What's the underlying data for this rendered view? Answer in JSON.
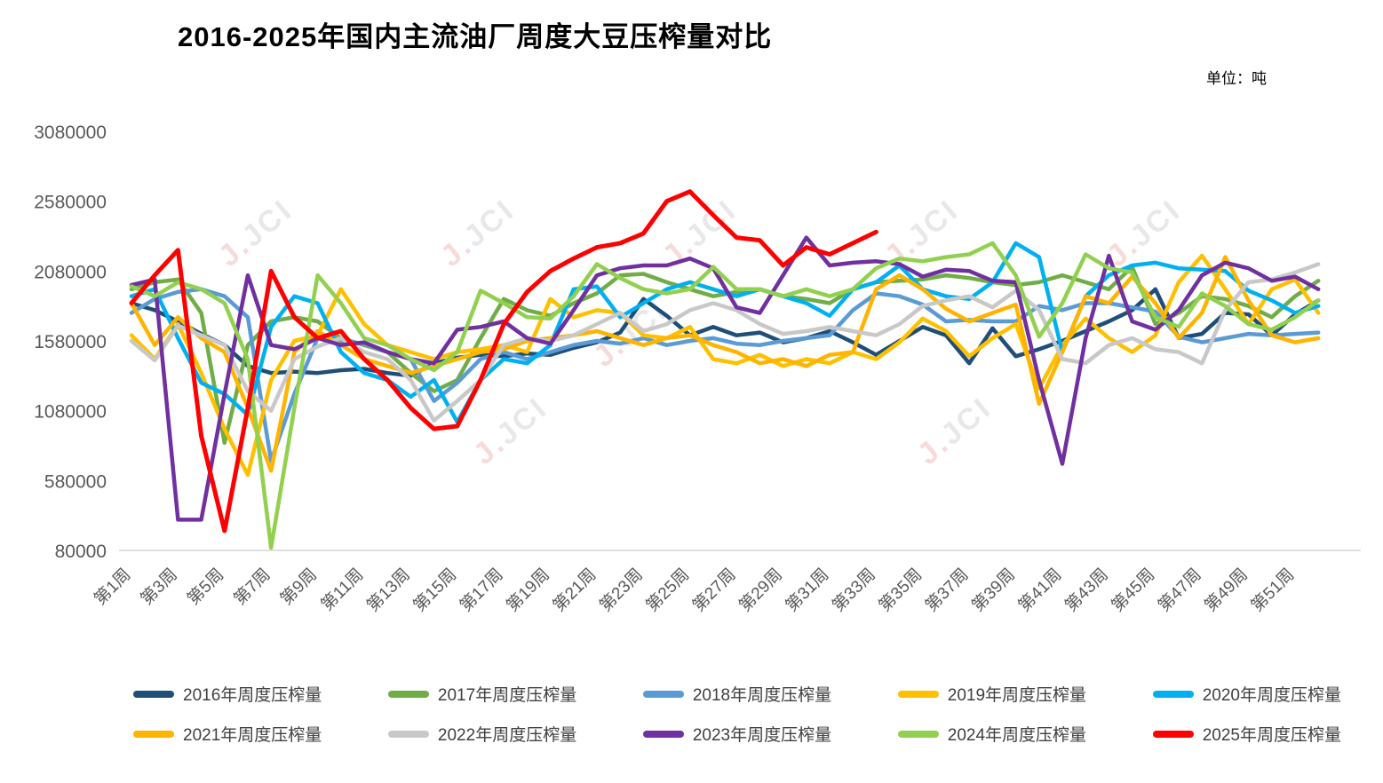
{
  "title": "2016-2025年国内主流油厂周度大豆压榨量对比",
  "unit_label": "单位：吨",
  "watermark": {
    "glyph": "J.",
    "text": "JCI"
  },
  "colors": {
    "axis_text": "#595959",
    "axis_line": "#d6d6d6",
    "watermark_red": "#f0b9b9",
    "watermark_gray": "#d2d2d2"
  },
  "chart_data": {
    "type": "line",
    "title": "2016-2025年国内主流油厂周度大豆压榨量对比",
    "unit": "吨",
    "grid": false,
    "legend_position": "bottom",
    "ylim": [
      80000,
      3080000
    ],
    "y_ticks": [
      3080000,
      2580000,
      2080000,
      1580000,
      1080000,
      580000,
      80000
    ],
    "weeks": 52,
    "x_tick_labels": [
      "第1周",
      "第3周",
      "第5周",
      "第7周",
      "第9周",
      "第11周",
      "第13周",
      "第15周",
      "第17周",
      "第19周",
      "第21周",
      "第23周",
      "第25周",
      "第27周",
      "第29周",
      "第31周",
      "第33周",
      "第35周",
      "第37周",
      "第39周",
      "第41周",
      "第43周",
      "第45周",
      "第47周",
      "第49周",
      "第51周"
    ],
    "series": [
      {
        "name": "2016年周度压榨量",
        "color": "#1F4E79",
        "values": [
          1850000,
          1800000,
          1720000,
          1630000,
          1550000,
          1400000,
          1350000,
          1360000,
          1350000,
          1370000,
          1380000,
          1350000,
          1330000,
          1420000,
          1460000,
          1480000,
          1470000,
          1490000,
          1480000,
          1530000,
          1570000,
          1640000,
          1880000,
          1760000,
          1620000,
          1680000,
          1620000,
          1640000,
          1570000,
          1600000,
          1650000,
          1570000,
          1480000,
          1580000,
          1680000,
          1620000,
          1420000,
          1670000,
          1470000,
          1520000,
          1580000,
          1650000,
          1720000,
          1800000,
          1950000,
          1600000,
          1630000,
          1780000,
          1770000,
          1620000,
          1770000,
          1870000
        ]
      },
      {
        "name": "2017年周度压榨量",
        "color": "#70AD47",
        "values": [
          1950000,
          2000000,
          2020000,
          1780000,
          850000,
          1550000,
          1720000,
          1750000,
          1720000,
          1600000,
          1550000,
          1500000,
          1350000,
          1220000,
          1300000,
          1600000,
          1880000,
          1800000,
          1760000,
          1850000,
          1920000,
          2050000,
          2060000,
          2000000,
          1950000,
          1900000,
          1930000,
          1950000,
          1900000,
          1880000,
          1850000,
          1950000,
          2000000,
          2010000,
          2020000,
          2050000,
          2030000,
          2000000,
          1980000,
          2000000,
          2050000,
          2000000,
          1950000,
          2110000,
          1700000,
          1780000,
          1900000,
          1880000,
          1830000,
          1750000,
          1900000,
          2010000
        ]
      },
      {
        "name": "2018年周度压榨量",
        "color": "#5B9BD5",
        "values": [
          1780000,
          1880000,
          1930000,
          1950000,
          1900000,
          1750000,
          720000,
          1200000,
          1600000,
          1580000,
          1560000,
          1500000,
          1450000,
          1150000,
          1280000,
          1450000,
          1500000,
          1450000,
          1500000,
          1550000,
          1580000,
          1560000,
          1600000,
          1550000,
          1580000,
          1600000,
          1560000,
          1550000,
          1580000,
          1600000,
          1620000,
          1800000,
          1920000,
          1900000,
          1840000,
          1720000,
          1730000,
          1720000,
          1720000,
          1830000,
          1800000,
          1850000,
          1850000,
          1820000,
          1790000,
          1610000,
          1570000,
          1600000,
          1630000,
          1620000,
          1630000,
          1640000
        ]
      },
      {
        "name": "2019年周度压榨量",
        "color": "#FFC000",
        "values": [
          1620000,
          1450000,
          1700000,
          1350000,
          950000,
          620000,
          1300000,
          1580000,
          1620000,
          1950000,
          1700000,
          1550000,
          1500000,
          1450000,
          1500000,
          1520000,
          1550000,
          1500000,
          1880000,
          1750000,
          1800000,
          1780000,
          1620000,
          1600000,
          1680000,
          1450000,
          1420000,
          1480000,
          1400000,
          1450000,
          1420000,
          1500000,
          1450000,
          1570000,
          1740000,
          1650000,
          1470000,
          1600000,
          1700000,
          1240000,
          1550000,
          1740000,
          1600000,
          1500000,
          1620000,
          2000000,
          2190000,
          1950000,
          1700000,
          1950000,
          2020000,
          1780000
        ]
      },
      {
        "name": "2020年周度压榨量",
        "color": "#00B0F0",
        "values": [
          1900000,
          1950000,
          1600000,
          1280000,
          1200000,
          1050000,
          1680000,
          1900000,
          1850000,
          1500000,
          1350000,
          1300000,
          1180000,
          1300000,
          1000000,
          1300000,
          1450000,
          1420000,
          1550000,
          1950000,
          1970000,
          1750000,
          1850000,
          1950000,
          2000000,
          1950000,
          1900000,
          1950000,
          1900000,
          1850000,
          1760000,
          1950000,
          2000000,
          2120000,
          1950000,
          1900000,
          1880000,
          2000000,
          2280000,
          2180000,
          1500000,
          1900000,
          2050000,
          2120000,
          2140000,
          2100000,
          2090000,
          2080000,
          1940000,
          1870000,
          1780000,
          1830000
        ]
      },
      {
        "name": "2021年周度压榨量",
        "color": "#FFB400",
        "values": [
          1850000,
          1550000,
          1750000,
          1600000,
          1500000,
          1100000,
          650000,
          1500000,
          1650000,
          1550000,
          1450000,
          1400000,
          1350000,
          1400000,
          1450000,
          1500000,
          1520000,
          1580000,
          1600000,
          1620000,
          1650000,
          1600000,
          1550000,
          1600000,
          1620000,
          1550000,
          1500000,
          1420000,
          1450000,
          1400000,
          1480000,
          1500000,
          1950000,
          2050000,
          1950000,
          1810000,
          1720000,
          1780000,
          1840000,
          1130000,
          1500000,
          1900000,
          1850000,
          2040000,
          1850000,
          1600000,
          1780000,
          2180000,
          1870000,
          1620000,
          1570000,
          1600000
        ]
      },
      {
        "name": "2022年周度压榨量",
        "color": "#C8C8C8",
        "values": [
          1580000,
          1440000,
          1690000,
          1620000,
          1550000,
          1220000,
          1080000,
          1450000,
          1540000,
          1600000,
          1500000,
          1450000,
          1300000,
          1010000,
          1150000,
          1300000,
          1550000,
          1600000,
          1580000,
          1620000,
          1700000,
          1780000,
          1650000,
          1700000,
          1800000,
          1850000,
          1800000,
          1700000,
          1630000,
          1650000,
          1680000,
          1650000,
          1620000,
          1700000,
          1830000,
          1870000,
          1900000,
          1820000,
          1940000,
          1800000,
          1450000,
          1420000,
          1550000,
          1600000,
          1520000,
          1500000,
          1420000,
          1800000,
          2000000,
          2020000,
          2070000,
          2130000
        ]
      },
      {
        "name": "2023年周度压榨量",
        "color": "#7030A0",
        "values": [
          1980000,
          2020000,
          300000,
          300000,
          1200000,
          2050000,
          1550000,
          1520000,
          1600000,
          1550000,
          1570000,
          1500000,
          1450000,
          1420000,
          1660000,
          1680000,
          1720000,
          1600000,
          1560000,
          1800000,
          2050000,
          2100000,
          2120000,
          2120000,
          2170000,
          2100000,
          1820000,
          1780000,
          2050000,
          2320000,
          2120000,
          2140000,
          2150000,
          2130000,
          2040000,
          2090000,
          2080000,
          2010000,
          2000000,
          1300000,
          700000,
          1600000,
          2190000,
          1720000,
          1660000,
          1800000,
          2050000,
          2140000,
          2100000,
          2010000,
          2040000,
          1950000
        ]
      },
      {
        "name": "2024年周度压榨量",
        "color": "#92D050",
        "values": [
          1970000,
          1900000,
          2000000,
          1950000,
          1850000,
          1450000,
          99000,
          1100000,
          2050000,
          1850000,
          1600000,
          1550000,
          1450000,
          1370000,
          1500000,
          1940000,
          1850000,
          1750000,
          1740000,
          1900000,
          2130000,
          2030000,
          1950000,
          1920000,
          1950000,
          2110000,
          1950000,
          1950000,
          1900000,
          1950000,
          1900000,
          1950000,
          2100000,
          2170000,
          2150000,
          2180000,
          2200000,
          2280000,
          2050000,
          1610000,
          1850000,
          2200000,
          2100000,
          2070000,
          1750000,
          1680000,
          1920000,
          1830000,
          1700000,
          1660000,
          1750000,
          1870000
        ]
      },
      {
        "name": "2025年周度压榨量",
        "color": "#FF0000",
        "values": [
          1850000,
          2050000,
          2230000,
          900000,
          220000,
          1100000,
          2080000,
          1750000,
          1600000,
          1650000,
          1450000,
          1300000,
          1100000,
          950000,
          970000,
          1300000,
          1700000,
          1930000,
          2080000,
          2170000,
          2250000,
          2280000,
          2350000,
          2580000,
          2650000,
          2480000,
          2320000,
          2300000,
          2120000,
          2250000,
          2200000,
          2280000,
          2360000
        ]
      }
    ]
  }
}
